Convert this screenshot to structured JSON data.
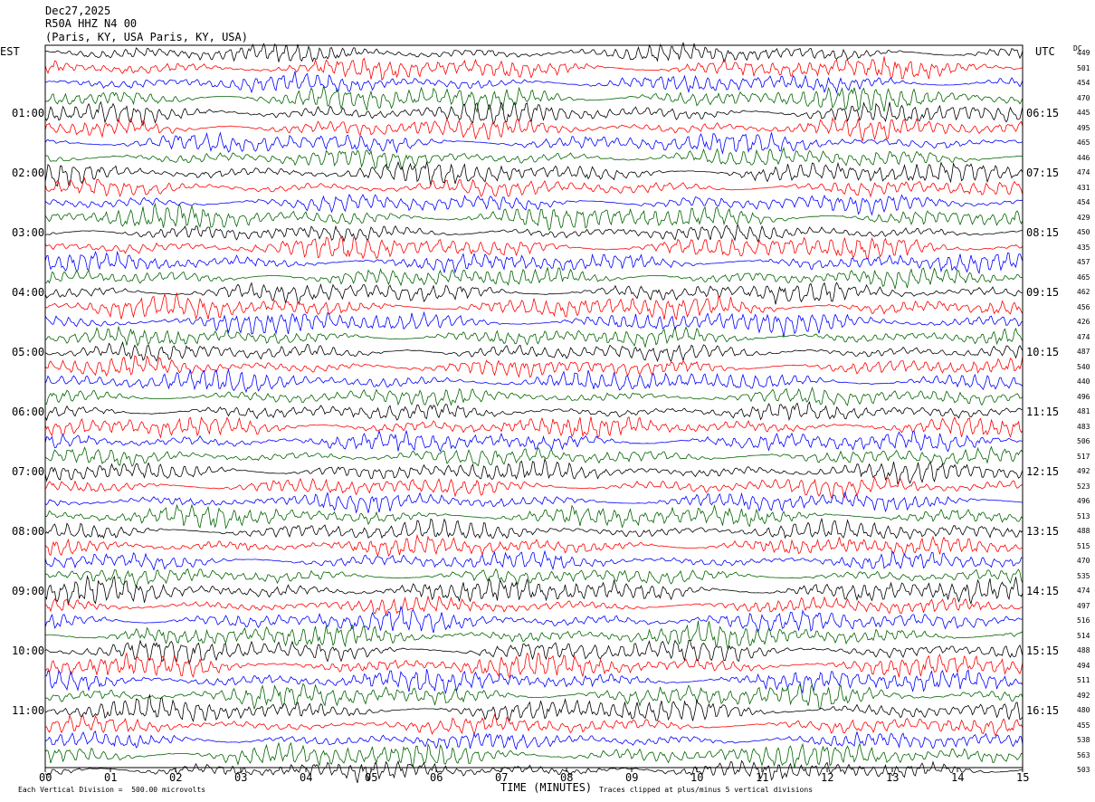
{
  "header": {
    "date": "Dec27,2025",
    "station": "R50A HHZ N4 00",
    "location": "(Paris, KY, USA Paris, KY, USA)"
  },
  "chart_data": {
    "type": "line",
    "title": "",
    "left_timezone": "EST",
    "right_timezone": "UTC",
    "dc_label": "DC",
    "xlabel": "TIME (MINUTES)",
    "xlim": [
      0,
      15
    ],
    "x_ticks": [
      "00",
      "01",
      "02",
      "03",
      "04",
      "05",
      "06",
      "07",
      "08",
      "09",
      "10",
      "11",
      "12",
      "13",
      "14",
      "15"
    ],
    "trace_colors": [
      "#000000",
      "#ff0000",
      "#0000ff",
      "#006400"
    ],
    "left_hour_labels": [
      "01:00",
      "02:00",
      "03:00",
      "04:00",
      "05:00",
      "06:00",
      "07:00",
      "08:00",
      "09:00",
      "10:00",
      "11:00"
    ],
    "right_hour_labels": [
      "06:15",
      "07:15",
      "08:15",
      "09:15",
      "10:15",
      "11:15",
      "12:15",
      "13:15",
      "14:15",
      "15:15",
      "16:15"
    ],
    "dc_offsets": [
      449,
      501,
      454,
      470,
      445,
      495,
      465,
      446,
      474,
      431,
      454,
      429,
      450,
      435,
      457,
      465,
      462,
      456,
      426,
      474,
      487,
      540,
      440,
      496,
      481,
      483,
      506,
      517,
      492,
      523,
      496,
      513,
      488,
      515,
      470,
      535,
      474,
      497,
      516,
      514,
      488,
      494,
      511,
      492,
      480,
      455,
      538,
      563,
      503
    ],
    "scale_note": "Each Vertical Division =  500.00 microvolts",
    "clip_note": "Traces clipped at plus/minus 5 vertical divisions"
  }
}
